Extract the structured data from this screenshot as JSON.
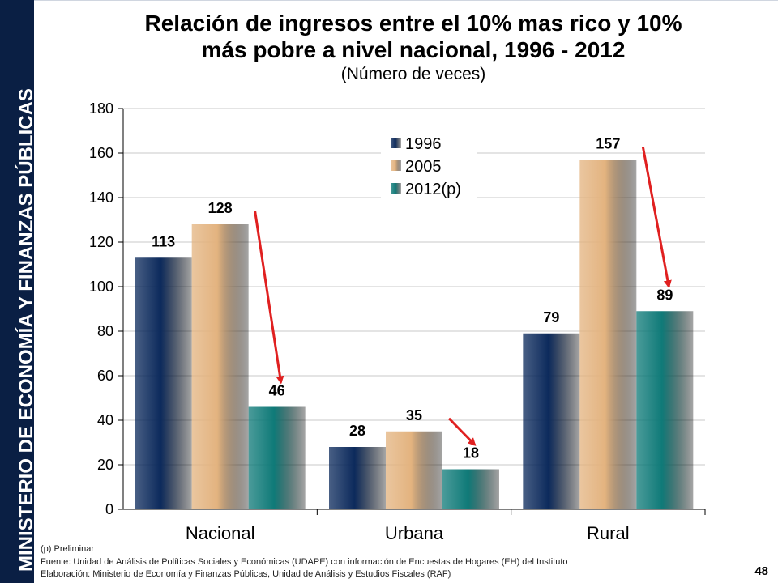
{
  "sidebar": {
    "text": "MINISTERIO DE ECONOMÍA Y FINANZAS PÚBLICAS"
  },
  "title_line1": "Relación de ingresos entre el 10% mas rico y 10%",
  "title_line2": "más pobre a nivel nacional, 1996 - 2012",
  "subtitle": "(Número de veces)",
  "footnotes": {
    "preliminar": "(p) Preliminar",
    "fuente": "Fuente: Unidad de Análisis de Políticas Sociales y Económicas (UDAPE) con información de Encuestas de Hogares (EH) del Instituto",
    "elaboracion": "Elaboración: Ministerio de Economía y Finanzas Públicas, Unidad de Análisis y Estudios Fiscales (RAF)"
  },
  "page_number": "48",
  "chart_data": {
    "type": "bar",
    "title": "Relación de ingresos entre el 10% mas rico y 10% más pobre a nivel nacional, 1996 - 2012",
    "ylabel": "(Número de veces)",
    "xlabel": "",
    "categories": [
      "Nacional",
      "Urbana",
      "Rural"
    ],
    "series": [
      {
        "name": "1996",
        "values": [
          113,
          28,
          79
        ],
        "color": "#0c2a5c"
      },
      {
        "name": "2005",
        "values": [
          128,
          35,
          157
        ],
        "color": "#e3b37f"
      },
      {
        "name": "2012(p)",
        "values": [
          46,
          18,
          89
        ],
        "color": "#0f7a78"
      }
    ],
    "data_labels": [
      [
        "113",
        "28",
        "79"
      ],
      [
        "128",
        "35",
        "157"
      ],
      [
        "46",
        "18",
        "89"
      ]
    ],
    "ylim": [
      0,
      180
    ],
    "yticks": [
      0,
      20,
      40,
      60,
      80,
      100,
      120,
      140,
      160,
      180
    ],
    "ytick_labels": [
      "0",
      "20",
      "40",
      "60",
      "80",
      "100",
      "120",
      "140",
      "160",
      "180"
    ],
    "grid": true,
    "legend_position": "top-center",
    "annotations": "red arrows pointing from 2005 bars down to 2012(p) bars",
    "arrow_color": "#e02020"
  }
}
